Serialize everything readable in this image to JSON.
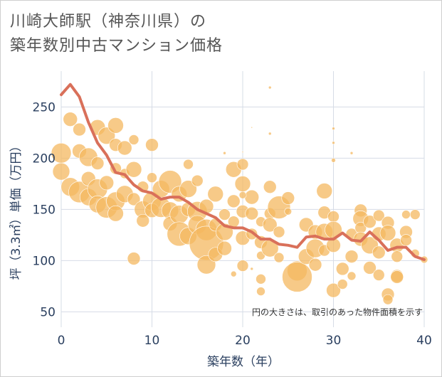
{
  "chart_data": {
    "type": "scatter",
    "title_line1": "川崎大師駅（神奈川県）の",
    "title_line2": "築年数別中古マンション価格",
    "xlabel": "築年数（年）",
    "ylabel": "坪（3.3㎡）単価（万円）",
    "note": "円の大きさは、取引のあった物件面積を示す",
    "xlim": [
      0,
      40
    ],
    "ylim": [
      35,
      285
    ],
    "x_ticks": [
      0,
      10,
      20,
      30,
      40
    ],
    "y_ticks": [
      50,
      100,
      150,
      200,
      250
    ],
    "grid": true,
    "colors": {
      "bubble": "#f4b860",
      "line": "#d9705a",
      "text": "#2a3f5f",
      "grid": "#d6dce6"
    },
    "line": {
      "name": "",
      "x": [
        0,
        1,
        2,
        3,
        4,
        5,
        6,
        7,
        8,
        9,
        10,
        11,
        12,
        13,
        14,
        15,
        16,
        17,
        18,
        19,
        20,
        21,
        22,
        23,
        24,
        25,
        26,
        27,
        28,
        29,
        30,
        31,
        32,
        33,
        34,
        35,
        36,
        37,
        38,
        39,
        40
      ],
      "y": [
        262,
        272,
        260,
        235,
        215,
        203,
        186,
        184,
        174,
        168,
        166,
        160,
        162,
        162,
        157,
        150,
        146,
        142,
        134,
        132,
        132,
        128,
        121,
        121,
        116,
        115,
        113,
        123,
        124,
        121,
        121,
        127,
        120,
        119,
        128,
        120,
        110,
        113,
        113,
        104,
        101
      ]
    },
    "bubbles": [
      [
        0,
        205,
        14
      ],
      [
        0,
        187,
        12
      ],
      [
        1,
        238,
        10
      ],
      [
        1,
        172,
        13
      ],
      [
        2,
        228,
        9
      ],
      [
        2,
        207,
        10
      ],
      [
        2,
        167,
        15
      ],
      [
        3,
        201,
        13
      ],
      [
        3,
        180,
        10
      ],
      [
        3,
        162,
        12
      ],
      [
        4,
        230,
        11
      ],
      [
        4,
        195,
        9
      ],
      [
        4,
        170,
        14
      ],
      [
        4,
        155,
        12
      ],
      [
        5,
        222,
        12
      ],
      [
        5,
        176,
        10
      ],
      [
        5,
        152,
        15
      ],
      [
        6,
        232,
        11
      ],
      [
        6,
        213,
        9
      ],
      [
        6,
        190,
        8
      ],
      [
        6,
        158,
        13
      ],
      [
        6,
        146,
        11
      ],
      [
        7,
        210,
        10
      ],
      [
        7,
        185,
        7
      ],
      [
        7,
        165,
        12
      ],
      [
        8,
        218,
        7
      ],
      [
        8,
        189,
        11
      ],
      [
        8,
        102,
        9
      ],
      [
        8,
        160,
        9
      ],
      [
        9,
        172,
        8
      ],
      [
        9,
        150,
        12
      ],
      [
        9,
        139,
        9
      ],
      [
        10,
        213,
        9
      ],
      [
        10,
        181,
        7
      ],
      [
        10,
        158,
        13
      ],
      [
        10,
        149,
        10
      ],
      [
        11,
        170,
        12
      ],
      [
        11,
        152,
        14
      ],
      [
        12,
        177,
        16
      ],
      [
        12,
        149,
        12
      ],
      [
        12,
        136,
        10
      ],
      [
        13,
        165,
        11
      ],
      [
        13,
        145,
        13
      ],
      [
        13,
        126,
        17
      ],
      [
        14,
        194,
        7
      ],
      [
        14,
        170,
        12
      ],
      [
        14,
        150,
        10
      ],
      [
        14,
        124,
        12
      ],
      [
        15,
        178,
        8
      ],
      [
        15,
        148,
        14
      ],
      [
        15,
        135,
        13
      ],
      [
        16,
        153,
        10
      ],
      [
        16,
        130,
        15
      ],
      [
        16,
        117,
        24
      ],
      [
        16,
        96,
        13
      ],
      [
        17,
        165,
        11
      ],
      [
        17,
        135,
        9
      ],
      [
        17,
        106,
        10
      ],
      [
        18,
        145,
        8
      ],
      [
        18,
        128,
        12
      ],
      [
        18,
        112,
        10
      ],
      [
        19,
        189,
        11
      ],
      [
        19,
        158,
        9
      ],
      [
        19,
        138,
        8
      ],
      [
        19,
        87,
        4
      ],
      [
        20,
        194,
        8
      ],
      [
        20,
        175,
        11
      ],
      [
        20,
        148,
        9
      ],
      [
        20,
        122,
        10
      ],
      [
        20,
        95,
        8
      ],
      [
        21,
        162,
        10
      ],
      [
        21,
        146,
        9
      ],
      [
        21,
        126,
        8
      ],
      [
        22,
        138,
        7
      ],
      [
        22,
        118,
        9
      ],
      [
        22,
        105,
        6
      ],
      [
        22,
        82,
        7
      ],
      [
        22,
        70,
        6
      ],
      [
        23,
        172,
        9
      ],
      [
        23,
        146,
        8
      ],
      [
        23,
        135,
        10
      ],
      [
        23,
        112,
        12
      ],
      [
        24,
        152,
        16
      ],
      [
        24,
        128,
        8
      ],
      [
        24,
        103,
        7
      ],
      [
        25,
        161,
        9
      ],
      [
        25,
        148,
        5
      ],
      [
        26,
        90,
        14
      ],
      [
        26,
        84,
        21
      ],
      [
        27,
        135,
        10
      ],
      [
        27,
        104,
        11
      ],
      [
        28,
        128,
        10
      ],
      [
        28,
        112,
        13
      ],
      [
        28,
        96,
        9
      ],
      [
        29,
        168,
        11
      ],
      [
        29,
        147,
        9
      ],
      [
        29,
        128,
        12
      ],
      [
        29,
        110,
        8
      ],
      [
        30,
        143,
        8
      ],
      [
        30,
        130,
        12
      ],
      [
        30,
        115,
        10
      ],
      [
        30,
        71,
        10
      ],
      [
        31,
        92,
        9
      ],
      [
        31,
        77,
        7
      ],
      [
        32,
        126,
        8
      ],
      [
        32,
        104,
        9
      ],
      [
        32,
        85,
        6
      ],
      [
        33,
        149,
        9
      ],
      [
        33,
        141,
        11
      ],
      [
        33,
        132,
        8
      ],
      [
        33,
        121,
        10
      ],
      [
        34,
        138,
        9
      ],
      [
        34,
        115,
        12
      ],
      [
        34,
        93,
        9
      ],
      [
        35,
        144,
        8
      ],
      [
        35,
        126,
        10
      ],
      [
        35,
        108,
        9
      ],
      [
        35,
        86,
        8
      ],
      [
        36,
        137,
        9
      ],
      [
        36,
        127,
        11
      ],
      [
        36,
        67,
        9
      ],
      [
        36,
        62,
        7
      ],
      [
        37,
        115,
        10
      ],
      [
        37,
        104,
        8
      ],
      [
        37,
        85,
        9
      ],
      [
        37,
        84,
        9
      ],
      [
        38,
        145,
        6
      ],
      [
        38,
        128,
        9
      ],
      [
        38,
        120,
        8
      ],
      [
        39,
        145,
        7
      ],
      [
        39,
        107,
        6
      ],
      [
        40,
        101,
        5
      ],
      [
        20,
        164,
        5
      ],
      [
        23,
        269,
        2
      ],
      [
        23,
        224,
        2
      ],
      [
        30,
        229,
        2
      ],
      [
        30,
        215,
        2
      ],
      [
        30,
        198,
        3
      ],
      [
        32,
        205,
        2
      ],
      [
        18,
        205,
        2
      ],
      [
        21,
        230,
        1
      ],
      [
        20,
        206,
        1
      ],
      [
        21,
        92,
        2
      ]
    ]
  }
}
